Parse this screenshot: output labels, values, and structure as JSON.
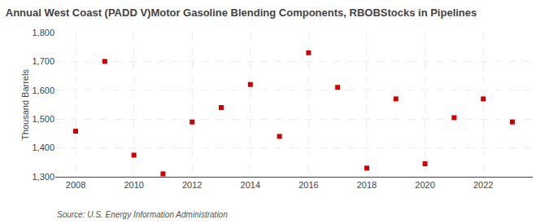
{
  "chart_data": {
    "type": "scatter",
    "title": "Annual West Coast (PADD V)Motor Gasoline Blending Components, RBOBStocks in Pipelines",
    "ylabel": "Thousand Barrels",
    "source": "Source: U.S. Energy Information Administration",
    "x": [
      2008,
      2009,
      2010,
      2011,
      2012,
      2013,
      2014,
      2015,
      2016,
      2017,
      2018,
      2019,
      2020,
      2021,
      2022,
      2023
    ],
    "values": [
      1458,
      1700,
      1375,
      1310,
      1490,
      1540,
      1620,
      1440,
      1730,
      1610,
      1330,
      1570,
      1345,
      1505,
      1570,
      1490
    ],
    "color": "#cc0000",
    "marker": "square",
    "xlim": [
      2007.3,
      2023.7
    ],
    "xticks": [
      2008,
      2010,
      2012,
      2014,
      2016,
      2018,
      2020,
      2022
    ],
    "ylim": [
      1300,
      1800
    ],
    "yticks": [
      {
        "value": 1300,
        "label": "1,300"
      },
      {
        "value": 1400,
        "label": "1,400"
      },
      {
        "value": 1500,
        "label": "1,500"
      },
      {
        "value": 1600,
        "label": "1,600"
      },
      {
        "value": 1700,
        "label": "1,700"
      },
      {
        "value": 1800,
        "label": "1,800"
      }
    ],
    "grid": true
  }
}
